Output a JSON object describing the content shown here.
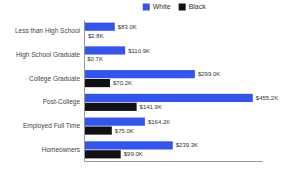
{
  "chart_data": {
    "type": "bar",
    "orientation": "horizontal",
    "categories": [
      "Less than High School",
      "High School Graduate",
      "College Graduate",
      "Post-College",
      "Employed Full Time",
      "Homeowners"
    ],
    "series": [
      {
        "name": "White",
        "color": "#3355ee",
        "values": [
          83.0,
          110.9,
          299.0,
          455.2,
          164.2,
          239.3
        ],
        "value_labels": [
          "$83.0K",
          "$110.9K",
          "$299.0K",
          "$455.2K",
          "$164.2K",
          "$239.3K"
        ]
      },
      {
        "name": "Black",
        "color": "#111111",
        "values": [
          2.8,
          0.7,
          70.2,
          141.9,
          75.0,
          99.0
        ],
        "value_labels": [
          "$2.8K",
          "$0.7K",
          "$70.2K",
          "$141.9K",
          "$75.0K",
          "$99.0K"
        ]
      }
    ],
    "xlim": [
      0,
      480
    ],
    "data_labels": true,
    "legend": "top",
    "tick_labels": "y",
    "grid": false
  }
}
